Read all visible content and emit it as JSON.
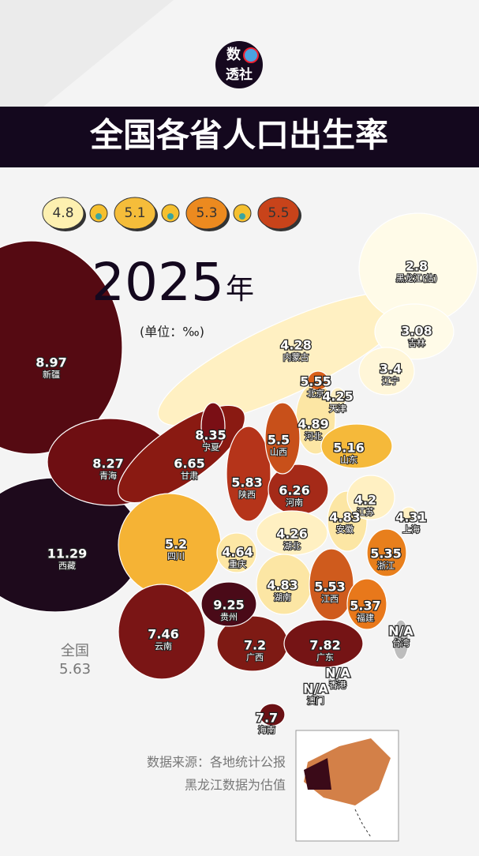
{
  "header": {
    "logo_top": "数",
    "logo_bottom": "透社",
    "title": "全国各省人口出生率"
  },
  "legend": [
    {
      "value": 4.8,
      "color": "#fdf0b0"
    },
    {
      "value": 5.1,
      "color": "#f5bd3a"
    },
    {
      "value": 5.3,
      "color": "#ec8a1f"
    },
    {
      "value": 5.5,
      "color": "#c8431a"
    }
  ],
  "year": "2025",
  "year_suffix": "年",
  "unit": "(单位：‰)",
  "national": {
    "label": "全国",
    "value": 5.63
  },
  "regions": [
    {
      "name": "黑龙江(估)",
      "value": 2.8,
      "color": "#fffbe8"
    },
    {
      "name": "吉林",
      "value": 3.08,
      "color": "#fffbe8"
    },
    {
      "name": "辽宁",
      "value": 3.4,
      "color": "#fff6d8"
    },
    {
      "name": "内蒙古",
      "value": 4.28,
      "color": "#fff0c2"
    },
    {
      "name": "北京",
      "value": 5.55,
      "color": "#d9601a"
    },
    {
      "name": "天津",
      "value": 4.25,
      "color": "#fff0c2"
    },
    {
      "name": "河北",
      "value": 4.89,
      "color": "#fce6a4"
    },
    {
      "name": "山西",
      "value": 5.5,
      "color": "#c8501a"
    },
    {
      "name": "山东",
      "value": 5.16,
      "color": "#f5b93a"
    },
    {
      "name": "宁夏",
      "value": 8.35,
      "color": "#7a0f15"
    },
    {
      "name": "甘肃",
      "value": 6.65,
      "color": "#8a1a12"
    },
    {
      "name": "青海",
      "value": 8.27,
      "color": "#6e0e12"
    },
    {
      "name": "新疆",
      "value": 8.97,
      "color": "#550a12"
    },
    {
      "name": "西藏",
      "value": 11.29,
      "color": "#1e0a1c"
    },
    {
      "name": "陕西",
      "value": 5.83,
      "color": "#b5341a"
    },
    {
      "name": "河南",
      "value": 6.26,
      "color": "#a52a18"
    },
    {
      "name": "江苏",
      "value": 4.2,
      "color": "#fff0c2"
    },
    {
      "name": "安徽",
      "value": 4.83,
      "color": "#fce6a4"
    },
    {
      "name": "上海",
      "value": 4.31,
      "color": "#fff0c2"
    },
    {
      "name": "湖北",
      "value": 4.26,
      "color": "#fff0c2"
    },
    {
      "name": "四川",
      "value": 5.2,
      "color": "#f5b335"
    },
    {
      "name": "重庆",
      "value": 4.64,
      "color": "#fde7a5"
    },
    {
      "name": "浙江",
      "value": 5.35,
      "color": "#e87f1c"
    },
    {
      "name": "湖南",
      "value": 4.83,
      "color": "#fce6a4"
    },
    {
      "name": "江西",
      "value": 5.53,
      "color": "#cf5b1d"
    },
    {
      "name": "福建",
      "value": 5.37,
      "color": "#e8781b"
    },
    {
      "name": "贵州",
      "value": 9.25,
      "color": "#4a0a18"
    },
    {
      "name": "云南",
      "value": 7.46,
      "color": "#7a1515"
    },
    {
      "name": "广西",
      "value": 7.2,
      "color": "#7e1a14"
    },
    {
      "name": "广东",
      "value": 7.82,
      "color": "#751415"
    },
    {
      "name": "海南",
      "value": 7.7,
      "color": "#6a1014"
    },
    {
      "name": "台湾",
      "value": "N/A",
      "color": "#bdbdbd"
    },
    {
      "name": "香港",
      "value": "N/A",
      "color": "#bdbdbd"
    },
    {
      "name": "澳门",
      "value": "N/A",
      "color": "#bdbdbd"
    }
  ],
  "source": [
    "数据来源：各地统计公报",
    "黑龙江数据为估值"
  ]
}
